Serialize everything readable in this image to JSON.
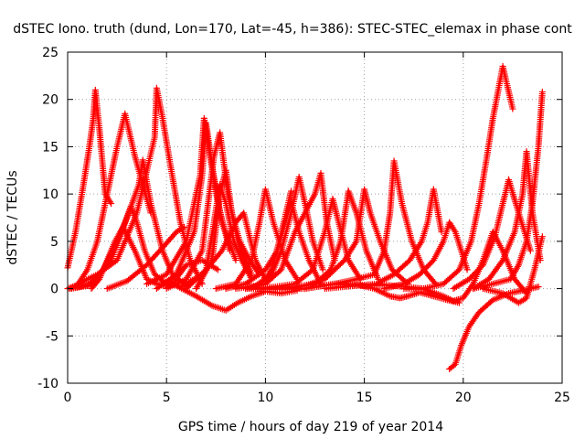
{
  "chart_data": {
    "type": "scatter",
    "title": "dSTEC Iono. truth (dund, Lon=170, Lat=-45, h=386): STEC-STEC_elemax in phase cont",
    "xlabel": "GPS time / hours of day 219 of year 2014",
    "ylabel": "dSTEC  / TECUs",
    "xlim": [
      0,
      25
    ],
    "ylim": [
      -10,
      25
    ],
    "xticks": [
      "0",
      "5",
      "10",
      "15",
      "20",
      "25"
    ],
    "yticks": [
      "-10",
      "-5",
      "0",
      "5",
      "10",
      "15",
      "20",
      "25"
    ],
    "grid": true,
    "marker": "+",
    "color": "#ff0000",
    "series": [
      {
        "x": [
          0.0,
          0.4,
          0.8,
          1.1,
          1.3,
          1.4,
          1.6,
          1.9,
          2.2
        ],
        "y": [
          2.2,
          6,
          11,
          15,
          18,
          21,
          17,
          10,
          9
        ]
      },
      {
        "x": [
          0.0,
          0.5,
          1.0,
          1.5,
          2.0,
          2.5,
          2.9,
          3.4,
          4.2
        ],
        "y": [
          0,
          0.4,
          2,
          5,
          10,
          15,
          18.5,
          14,
          8
        ]
      },
      {
        "x": [
          0.1,
          1.0,
          1.8,
          2.4,
          2.9,
          3.2,
          3.5,
          3.9,
          4.4,
          5.0,
          5.6
        ],
        "y": [
          0,
          0.3,
          2,
          4.5,
          7,
          8.7,
          7,
          4,
          1.5,
          0.5,
          0.3
        ]
      },
      {
        "x": [
          0.2,
          1.2,
          2.2,
          3.0,
          3.6,
          3.8,
          4.2,
          4.8,
          5.3,
          6.0
        ],
        "y": [
          0,
          0.5,
          3,
          7.5,
          11,
          13.6,
          9,
          4,
          1.5,
          0.3
        ]
      },
      {
        "x": [
          1.2,
          1.6,
          2.0,
          2.4,
          2.8,
          3.4,
          4.0,
          4.5,
          4.9,
          5.4,
          6.0,
          6.8,
          7.6
        ],
        "y": [
          0,
          1,
          3,
          5,
          6.5,
          4,
          1,
          0.5,
          0.3,
          0.8,
          2.5,
          3,
          2
        ]
      },
      {
        "x": [
          0.5,
          1.5,
          2.5,
          3.5,
          4.4,
          4.5,
          4.8,
          5.2,
          5.7,
          6.2,
          6.8
        ],
        "y": [
          0.5,
          1.5,
          3,
          8,
          16,
          21.2,
          18,
          13,
          7,
          3,
          0.5
        ]
      },
      {
        "x": [
          2.0,
          3.0,
          4.0,
          5.0,
          5.5,
          5.9
        ],
        "y": [
          0,
          0.8,
          2.5,
          4.8,
          6,
          6.5
        ]
      },
      {
        "x": [
          4.0,
          5.0,
          6.0,
          6.7,
          6.9,
          7.2,
          7.6,
          8.2
        ],
        "y": [
          0.5,
          1.5,
          5,
          12,
          18,
          14,
          9,
          4
        ]
      },
      {
        "x": [
          4.5,
          5.5,
          6.4,
          6.8,
          7.0,
          7.3,
          7.8,
          8.5
        ],
        "y": [
          0,
          1.5,
          6,
          12,
          17.5,
          13,
          7,
          3
        ]
      },
      {
        "x": [
          5.0,
          6.0,
          6.8,
          7.1,
          7.4,
          7.7,
          8.1,
          8.6,
          9.3
        ],
        "y": [
          0,
          1,
          4,
          9,
          14,
          16.5,
          10,
          5,
          1.5
        ]
      },
      {
        "x": [
          6.0,
          7.0,
          7.4,
          7.7,
          8.0,
          8.4,
          8.8,
          9.3
        ],
        "y": [
          0,
          2,
          7,
          11,
          9,
          5,
          3,
          1
        ]
      },
      {
        "x": [
          6.5,
          7.3,
          7.7,
          8.0,
          8.3,
          8.7,
          9.2,
          9.7
        ],
        "y": [
          0,
          3,
          10,
          12.5,
          8,
          5,
          3,
          1.5
        ]
      },
      {
        "x": [
          5.5,
          6.5,
          7.3,
          8.0,
          8.6,
          9.3,
          10.0,
          10.8,
          11.6
        ],
        "y": [
          0.3,
          -0.8,
          -1.8,
          -2.3,
          -1.5,
          -0.8,
          -0.3,
          -0.5,
          -0.2
        ]
      },
      {
        "x": [
          5.8,
          6.8,
          7.8,
          8.5,
          8.9,
          9.5,
          10.0,
          10.3,
          10.7,
          11.3
        ],
        "y": [
          0.3,
          1.5,
          4,
          7,
          8,
          3,
          1,
          2,
          5,
          10.3
        ]
      },
      {
        "x": [
          7.5,
          8.5,
          9.3,
          9.7,
          10.0,
          10.4,
          11.0,
          11.6
        ],
        "y": [
          0,
          0.5,
          3,
          7,
          10.5,
          7,
          3,
          1
        ]
      },
      {
        "x": [
          8.0,
          9.0,
          10.0,
          10.6,
          11.0,
          11.3,
          11.7,
          12.2,
          12.8
        ],
        "y": [
          0,
          0.5,
          2,
          4,
          7,
          9.2,
          6,
          3,
          0.5
        ]
      },
      {
        "x": [
          8.5,
          9.5,
          10.3,
          10.8,
          11.3,
          11.7,
          12.0,
          12.4,
          12.9
        ],
        "y": [
          0,
          0.3,
          1.5,
          4,
          8,
          11.8,
          9,
          5,
          2
        ]
      },
      {
        "x": [
          9.0,
          10.0,
          10.8,
          11.5,
          12.0,
          12.5,
          12.8,
          13.1,
          13.5
        ],
        "y": [
          0,
          0.5,
          2,
          6,
          8,
          10,
          12.2,
          7,
          3
        ]
      },
      {
        "x": [
          9.5,
          10.5,
          11.5,
          12.4,
          13.0,
          13.4,
          13.7,
          14.2,
          14.8
        ],
        "y": [
          0,
          0.2,
          0.5,
          2,
          6,
          9.5,
          7,
          3,
          1
        ]
      },
      {
        "x": [
          10.5,
          11.5,
          12.5,
          13.3,
          13.8,
          14.2,
          14.6,
          15.1,
          15.7
        ],
        "y": [
          0,
          0.2,
          0.5,
          2,
          5,
          10.3,
          8,
          4,
          1
        ]
      },
      {
        "x": [
          9.0,
          10.5,
          12.0,
          13.5,
          15.0,
          16.0,
          17.0,
          18.0
        ],
        "y": [
          0,
          0,
          0,
          0.5,
          0.3,
          0.4,
          0.2,
          0
        ]
      },
      {
        "x": [
          11.0,
          12.0,
          13.0,
          14.0,
          14.6,
          15.0,
          15.3,
          15.8,
          16.4,
          17.2
        ],
        "y": [
          0,
          0.3,
          1,
          3,
          5,
          10.5,
          8,
          5,
          2,
          0.5
        ]
      },
      {
        "x": [
          12.0,
          13.5,
          14.6,
          15.5,
          16.0,
          16.3,
          16.5,
          16.9,
          17.4,
          18.0,
          18.6
        ],
        "y": [
          0,
          0.5,
          1,
          1.5,
          4,
          8,
          13.5,
          9,
          5,
          2,
          0.5
        ]
      },
      {
        "x": [
          13.0,
          14.5,
          15.6,
          16.5,
          17.3,
          17.9,
          18.2,
          18.5,
          18.9
        ],
        "y": [
          0,
          0.3,
          0.5,
          1.5,
          3,
          5,
          7,
          10.5,
          6
        ]
      },
      {
        "x": [
          14.5,
          15.5,
          16.3,
          16.8,
          17.2,
          17.8,
          18.5,
          19.2,
          19.8
        ],
        "y": [
          0.5,
          0,
          -0.8,
          -1,
          -0.8,
          -0.4,
          -0.8,
          -1.2,
          -1.5
        ]
      },
      {
        "x": [
          16.0,
          17.0,
          17.8,
          18.5,
          19.0,
          19.3,
          19.6,
          20.2
        ],
        "y": [
          0,
          0.5,
          1.5,
          3,
          5,
          7,
          6,
          2
        ]
      },
      {
        "x": [
          17.0,
          18.0,
          19.0,
          19.5,
          20.0,
          20.5,
          21.0,
          21.5,
          22.0,
          22.6,
          23.2
        ],
        "y": [
          0,
          0,
          -0.8,
          -1.3,
          -1,
          0.5,
          3,
          6,
          4,
          1,
          -0.5
        ]
      },
      {
        "x": [
          18.0,
          19.0,
          19.8,
          20.4,
          20.8,
          21.2,
          21.5,
          22.0,
          22.5
        ],
        "y": [
          0,
          0.5,
          2,
          5,
          9,
          14,
          18,
          23.5,
          19
        ]
      },
      {
        "x": [
          19.3,
          19.6,
          19.9,
          20.3,
          20.8,
          21.5,
          22.3,
          23.0,
          23.8
        ],
        "y": [
          -8.5,
          -8,
          -6,
          -4,
          -2.5,
          -1.2,
          -0.5,
          -0.2,
          0.2
        ]
      },
      {
        "x": [
          19.5,
          20.3,
          21.0,
          21.6,
          22.0,
          22.3,
          22.8,
          23.4
        ],
        "y": [
          0,
          1,
          2.5,
          5.5,
          9,
          11.5,
          8,
          4
        ]
      },
      {
        "x": [
          20.5,
          21.3,
          22.0,
          22.6,
          23.0,
          23.2,
          23.5,
          23.9
        ],
        "y": [
          0,
          1,
          3,
          6,
          10,
          14.5,
          8,
          3
        ]
      },
      {
        "x": [
          20.5,
          21.5,
          22.4,
          22.8,
          23.2,
          23.5,
          23.8,
          24.0
        ],
        "y": [
          0,
          0.5,
          1,
          2.5,
          5,
          9,
          15,
          20.8
        ]
      },
      {
        "x": [
          21.0,
          22.0,
          22.8,
          23.2,
          23.6,
          24.0
        ],
        "y": [
          0,
          -0.5,
          -1.5,
          -1,
          2,
          5.5
        ]
      }
    ]
  }
}
